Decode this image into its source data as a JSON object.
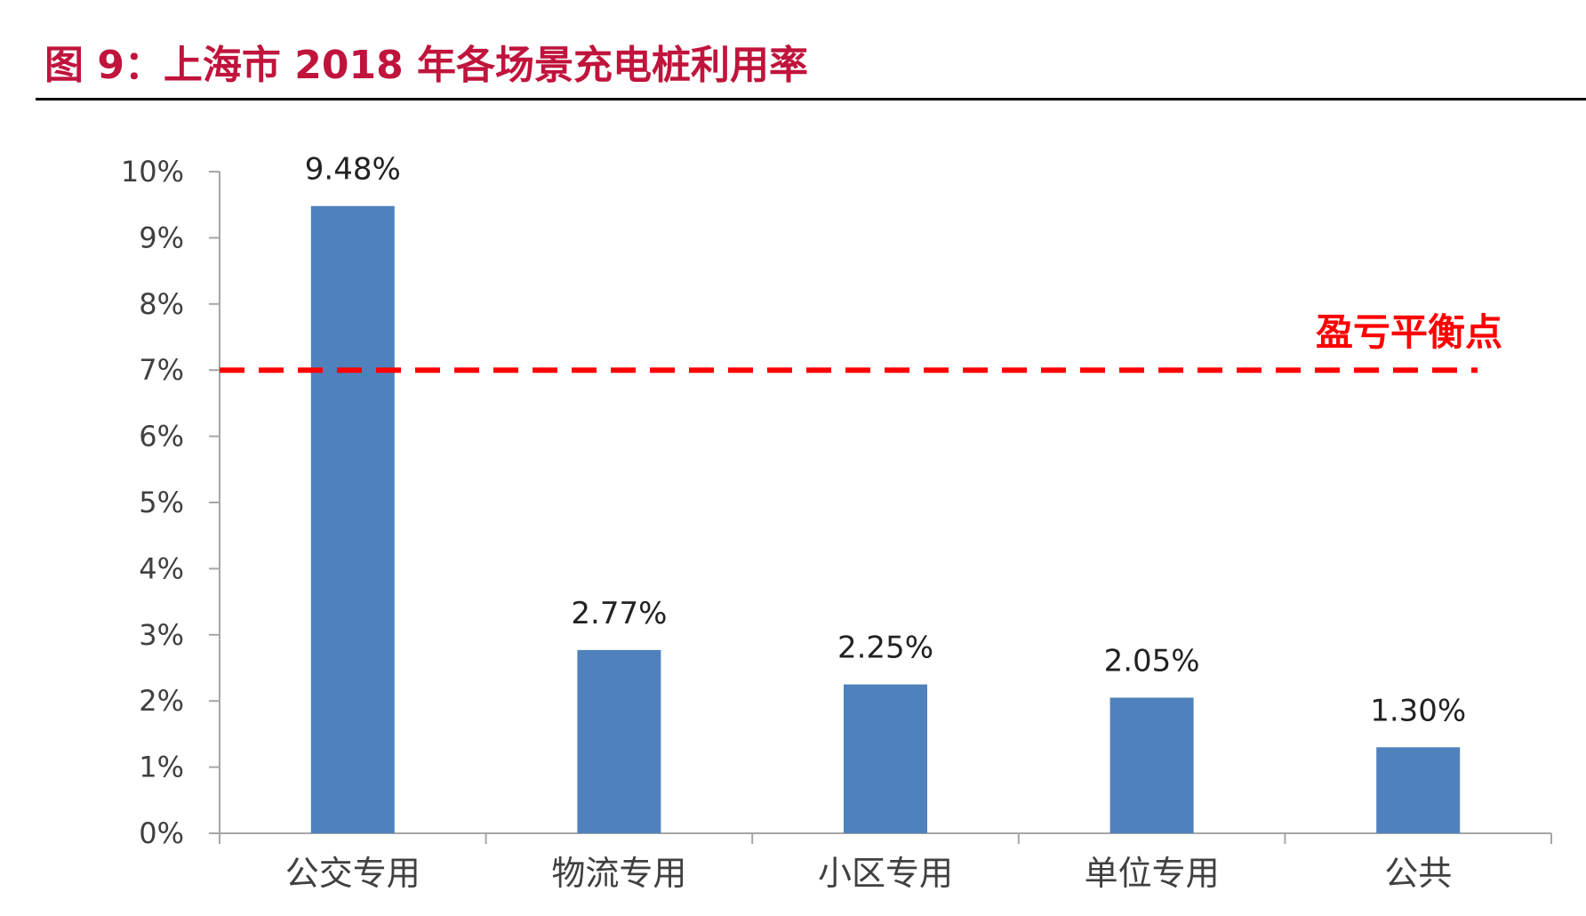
{
  "header": {
    "title": "图 9：上海市 2018 年各场景充电桩利用率"
  },
  "colors": {
    "title": "#c0143c",
    "bar": "#4f81bd",
    "reference_line": "#ff0000",
    "axis": "#a6a6a6",
    "text": "#404040",
    "rule": "#000000"
  },
  "chart_data": {
    "type": "bar",
    "title": "图 9：上海市 2018 年各场景充电桩利用率",
    "xlabel": "",
    "ylabel": "",
    "categories": [
      "公交专用",
      "物流专用",
      "小区专用",
      "单位专用",
      "公共"
    ],
    "values": [
      9.48,
      2.77,
      2.25,
      2.05,
      1.3
    ],
    "data_labels": [
      "9.48%",
      "2.77%",
      "2.25%",
      "2.05%",
      "1.30%"
    ],
    "ylim": [
      0,
      10
    ],
    "yticks": [
      0,
      1,
      2,
      3,
      4,
      5,
      6,
      7,
      8,
      9,
      10
    ],
    "ytick_labels": [
      "0%",
      "1%",
      "2%",
      "3%",
      "4%",
      "5%",
      "6%",
      "7%",
      "8%",
      "9%",
      "10%"
    ],
    "grid": false,
    "legend": "none",
    "reference_line": {
      "value": 7,
      "label": "盈亏平衡点",
      "style": "dashed"
    }
  }
}
